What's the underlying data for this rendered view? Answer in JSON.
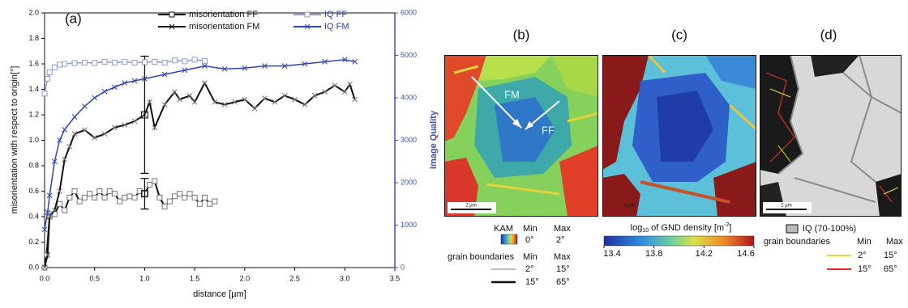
{
  "chart_data": {
    "type": "line",
    "panel_label": "(a)",
    "x_label": "distance [µm]",
    "y_label": "misorientation with respect to origin[°]",
    "y2_label": "Image Quality",
    "xlim": [
      0,
      3.5
    ],
    "xticks": [
      {
        "value": 0,
        "label": "0.0"
      },
      0.5,
      {
        "value": 1,
        "label": "1.0"
      },
      1.5,
      {
        "value": 2,
        "label": "2.0"
      },
      2.5,
      {
        "value": 3,
        "label": "3.0"
      },
      3.5
    ],
    "ylim": [
      0,
      2
    ],
    "yticks": [
      {
        "value": 0,
        "label": "0.0"
      },
      0.2,
      0.4,
      0.6,
      0.8,
      {
        "value": 1,
        "label": "1.0"
      },
      1.2,
      1.4,
      1.6,
      1.8,
      {
        "value": 2,
        "label": "2.0"
      }
    ],
    "y2lim": [
      0,
      6000
    ],
    "y2ticks": [
      0,
      1000,
      2000,
      3000,
      4000,
      5000,
      6000
    ],
    "series": [
      {
        "name": "misorientation FF",
        "color": "#111111",
        "marker": "square",
        "x": [
          0,
          0.02,
          0.05,
          0.08,
          0.1,
          0.15,
          0.2,
          0.25,
          0.3,
          0.35,
          0.4,
          0.45,
          0.5,
          0.55,
          0.6,
          0.65,
          0.7,
          0.75,
          0.8,
          0.85,
          0.9,
          0.95,
          1.0,
          1.05,
          1.1,
          1.15,
          1.2,
          1.25,
          1.3,
          1.35,
          1.4,
          1.45,
          1.5,
          1.55,
          1.6,
          1.65,
          1.7
        ],
        "values": [
          0,
          0.1,
          0.4,
          0.42,
          0.42,
          0.5,
          0.45,
          0.55,
          0.6,
          0.52,
          0.55,
          0.58,
          0.55,
          0.6,
          0.55,
          0.6,
          0.58,
          0.52,
          0.55,
          0.56,
          0.55,
          0.6,
          0.58,
          0.65,
          0.68,
          0.55,
          0.48,
          0.52,
          0.56,
          0.58,
          0.55,
          0.58,
          0.55,
          0.5,
          0.55,
          0.5,
          0.52
        ],
        "errors": [
          null,
          null,
          null,
          null,
          null,
          null,
          null,
          null,
          null,
          null,
          null,
          null,
          null,
          null,
          null,
          null,
          null,
          null,
          null,
          null,
          null,
          null,
          0.12,
          null,
          null,
          null,
          null,
          null,
          null,
          null,
          null,
          null,
          null,
          null,
          null,
          null,
          null
        ]
      },
      {
        "name": "misorientation FM",
        "color": "#111111",
        "marker": "x",
        "x": [
          0,
          0.03,
          0.05,
          0.1,
          0.15,
          0.2,
          0.25,
          0.3,
          0.4,
          0.5,
          0.6,
          0.7,
          0.8,
          0.9,
          1.0,
          1.05,
          1.1,
          1.2,
          1.3,
          1.35,
          1.45,
          1.5,
          1.6,
          1.7,
          1.8,
          1.9,
          2.0,
          2.1,
          2.2,
          2.3,
          2.4,
          2.5,
          2.6,
          2.7,
          2.8,
          2.9,
          3.0,
          3.05,
          3.1
        ],
        "values": [
          0,
          0.1,
          0.4,
          0.45,
          0.6,
          0.85,
          0.95,
          1.05,
          1.08,
          1.02,
          1.05,
          1.1,
          1.12,
          1.15,
          1.2,
          1.3,
          1.1,
          1.28,
          1.38,
          1.32,
          1.35,
          1.3,
          1.45,
          1.3,
          1.28,
          1.3,
          1.32,
          1.25,
          1.33,
          1.3,
          1.35,
          1.32,
          1.28,
          1.35,
          1.38,
          1.43,
          1.38,
          1.44,
          1.32
        ],
        "errors": [
          null,
          null,
          null,
          null,
          null,
          null,
          null,
          null,
          null,
          null,
          null,
          null,
          null,
          null,
          0.46,
          null,
          null,
          null,
          null,
          null,
          null,
          null,
          null,
          null,
          null,
          null,
          null,
          null,
          null,
          null,
          null,
          null,
          null,
          null,
          null,
          null,
          null,
          null,
          null
        ]
      },
      {
        "name": "IQ FF",
        "color": "#8e9ad6",
        "marker": "square",
        "axis": "y2",
        "x": [
          0,
          0.03,
          0.05,
          0.1,
          0.15,
          0.2,
          0.3,
          0.4,
          0.5,
          0.6,
          0.7,
          0.8,
          0.9,
          1.0,
          1.1,
          1.2,
          1.3,
          1.4,
          1.5,
          1.6
        ],
        "values": [
          4100,
          4450,
          4600,
          4720,
          4780,
          4800,
          4820,
          4830,
          4820,
          4850,
          4830,
          4850,
          4830,
          4840,
          4850,
          4830,
          4880,
          4860,
          4900,
          4870
        ]
      },
      {
        "name": "IQ FM",
        "color": "#2f47b0",
        "marker": "x",
        "axis": "y2",
        "x": [
          0,
          0.03,
          0.05,
          0.1,
          0.15,
          0.2,
          0.3,
          0.4,
          0.5,
          0.6,
          0.7,
          0.8,
          0.9,
          1.0,
          1.2,
          1.4,
          1.6,
          1.8,
          2.0,
          2.2,
          2.4,
          2.6,
          2.8,
          3.0,
          3.1
        ],
        "values": [
          900,
          1300,
          1700,
          2500,
          3000,
          3250,
          3550,
          3800,
          4000,
          4150,
          4250,
          4350,
          4400,
          4450,
          4550,
          4650,
          4750,
          4680,
          4700,
          4750,
          4750,
          4800,
          4850,
          4900,
          4850
        ]
      }
    ]
  },
  "panels": {
    "b": {
      "label": "(b)",
      "arrow_labels": [
        "FM",
        "FF"
      ],
      "scale_bar": "2 µm",
      "kam": {
        "title": "KAM",
        "min_header": "Min",
        "max_header": "Max",
        "min": "0°",
        "max": "2°"
      },
      "boundaries": {
        "title": "grain boundaries",
        "min_header": "Min",
        "max_header": "Max",
        "rows": [
          [
            "2°",
            "15°"
          ],
          [
            "15°",
            "65°"
          ]
        ]
      }
    },
    "c": {
      "label": "(c)",
      "scale_bar": "2 µm",
      "colorbar": {
        "title": [
          "log",
          "10",
          " of GND density [m",
          "-2",
          "]"
        ],
        "range": [
          13.4,
          14.6
        ],
        "ticks": [
          13.4,
          13.8,
          14.2,
          14.6
        ]
      }
    },
    "d": {
      "label": "(d)",
      "scale_bar": "2 µm",
      "iq": "IQ (70-100%)",
      "boundaries": {
        "title": "grain boundaries",
        "min_header": "Min",
        "max_header": "Max",
        "rows": [
          [
            "2°",
            "15°"
          ],
          [
            "15°",
            "65°"
          ]
        ]
      }
    }
  }
}
